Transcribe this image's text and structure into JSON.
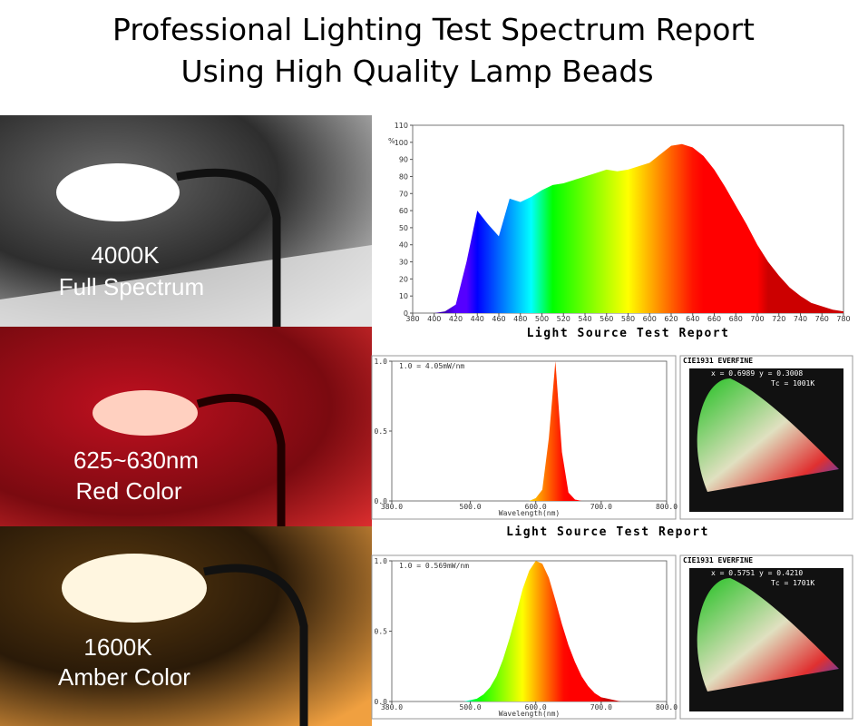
{
  "header": {
    "title_line1": "Professional Lighting Test Spectrum Report",
    "title_line2": "Using High Quality Lamp Beads"
  },
  "panels": [
    {
      "label_line1": "4000K",
      "label_line2": "Full Spectrum"
    },
    {
      "label_line1": "625~630nm",
      "label_line2": "Red Color"
    },
    {
      "label_line1": "1600K",
      "label_line2": "Amber Color"
    }
  ],
  "report_caption": "Light Source Test Report",
  "chart_data": [
    {
      "type": "area",
      "y_label": "%",
      "x_label": "Light Source Test Report",
      "x": [
        380,
        390,
        400,
        410,
        420,
        430,
        440,
        450,
        460,
        470,
        480,
        490,
        500,
        510,
        520,
        530,
        540,
        550,
        560,
        570,
        580,
        590,
        600,
        610,
        620,
        630,
        640,
        650,
        660,
        670,
        680,
        690,
        700,
        710,
        720,
        730,
        740,
        750,
        760,
        770,
        780
      ],
      "values": [
        0,
        0,
        0,
        1,
        5,
        30,
        60,
        52,
        45,
        67,
        65,
        68,
        72,
        75,
        76,
        78,
        80,
        82,
        84,
        83,
        84,
        86,
        88,
        93,
        98,
        99,
        97,
        92,
        84,
        74,
        63,
        52,
        40,
        30,
        22,
        15,
        10,
        6,
        4,
        2,
        1
      ],
      "xlim": [
        380,
        780
      ],
      "ylim": [
        0,
        110
      ],
      "xticks": [
        380,
        400,
        420,
        440,
        460,
        480,
        500,
        520,
        540,
        560,
        580,
        600,
        620,
        640,
        660,
        680,
        700,
        720,
        740,
        760,
        780
      ],
      "yticks": [
        0,
        10,
        20,
        30,
        40,
        50,
        60,
        70,
        80,
        90,
        100,
        110
      ],
      "grid": false
    },
    {
      "type": "area",
      "annotation": "1.0 = 4.05mW/nm",
      "x_label": "Wavelength(nm)",
      "cie_title": "CIE1931 EVERFINE",
      "cie_coords": "x = 0.6989 y = 0.3008",
      "cie_tc": "Tc = 1001K",
      "x": [
        380,
        390,
        400,
        410,
        420,
        430,
        440,
        450,
        460,
        470,
        480,
        490,
        500,
        510,
        520,
        530,
        540,
        550,
        560,
        570,
        580,
        590,
        600,
        610,
        620,
        630,
        640,
        650,
        660,
        670,
        680,
        690,
        700,
        710,
        720,
        730,
        740,
        750,
        760,
        770,
        780,
        790,
        800
      ],
      "values": [
        0,
        0,
        0,
        0,
        0,
        0,
        0,
        0,
        0,
        0,
        0,
        0,
        0,
        0,
        0,
        0,
        0,
        0,
        0,
        0,
        0,
        0,
        0.02,
        0.08,
        0.45,
        1.0,
        0.35,
        0.06,
        0.01,
        0,
        0,
        0,
        0,
        0,
        0,
        0,
        0,
        0,
        0,
        0,
        0,
        0,
        0
      ],
      "xlim": [
        380,
        800
      ],
      "ylim": [
        0,
        1
      ],
      "xticks": [
        {
          "value": 380,
          "label": "380.0"
        },
        {
          "value": 500,
          "label": "500.0"
        },
        {
          "value": 600,
          "label": "600.0"
        },
        {
          "value": 700,
          "label": "700.0"
        },
        {
          "value": 800,
          "label": "800.0"
        }
      ],
      "yticks": [
        {
          "value": 0,
          "label": "0.0"
        },
        {
          "value": 0.5,
          "label": "0.5"
        },
        {
          "value": 1,
          "label": "1.0"
        }
      ],
      "grid": false
    },
    {
      "type": "area",
      "annotation": "1.0 = 0.569mW/nm",
      "x_label": "Wavelength(nm)",
      "cie_title": "CIE1931 EVERFINE",
      "cie_coords": "x = 0.5751 y = 0.4210",
      "cie_tc": "Tc = 1701K",
      "x": [
        380,
        390,
        400,
        410,
        420,
        430,
        440,
        450,
        460,
        470,
        480,
        490,
        500,
        510,
        520,
        530,
        540,
        550,
        560,
        570,
        580,
        590,
        600,
        610,
        620,
        630,
        640,
        650,
        660,
        670,
        680,
        690,
        700,
        710,
        720,
        730,
        740,
        750,
        760,
        770,
        780,
        790,
        800
      ],
      "values": [
        0,
        0,
        0,
        0,
        0,
        0,
        0,
        0,
        0,
        0,
        0,
        0,
        0.01,
        0.02,
        0.05,
        0.1,
        0.18,
        0.3,
        0.45,
        0.62,
        0.8,
        0.93,
        1.0,
        0.98,
        0.88,
        0.72,
        0.55,
        0.4,
        0.28,
        0.18,
        0.11,
        0.06,
        0.03,
        0.02,
        0.01,
        0,
        0,
        0,
        0,
        0,
        0,
        0,
        0
      ],
      "xlim": [
        380,
        800
      ],
      "ylim": [
        0,
        1
      ],
      "xticks": [
        {
          "value": 380,
          "label": "380.0"
        },
        {
          "value": 500,
          "label": "500.0"
        },
        {
          "value": 600,
          "label": "600.0"
        },
        {
          "value": 700,
          "label": "700.0"
        },
        {
          "value": 800,
          "label": "800.0"
        }
      ],
      "yticks": [
        {
          "value": 0,
          "label": "0.0"
        },
        {
          "value": 0.5,
          "label": "0.5"
        },
        {
          "value": 1,
          "label": "1.0"
        }
      ],
      "grid": false
    }
  ]
}
